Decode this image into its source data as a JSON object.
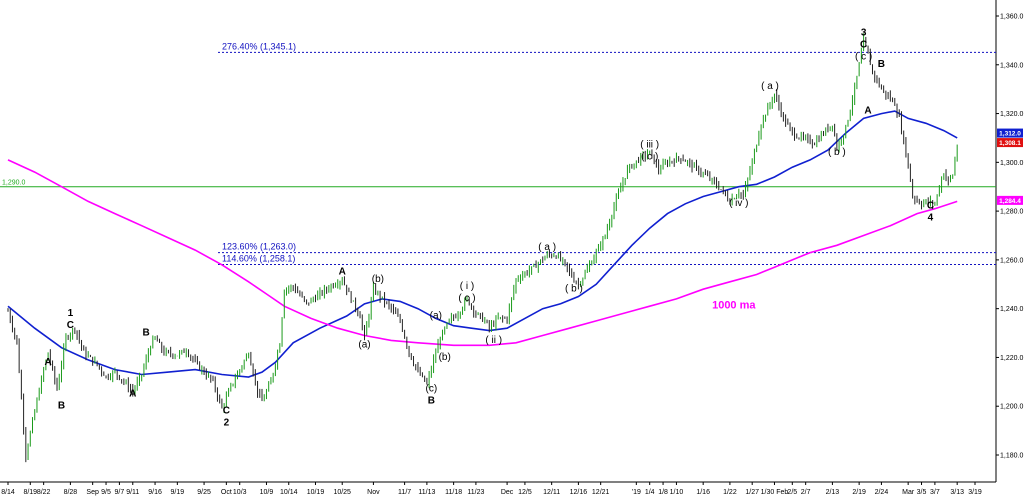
{
  "chart_data": {
    "type": "line",
    "title": "",
    "xlabel": "",
    "ylabel": "",
    "ylim": [
      1175,
      1365
    ],
    "grid": false,
    "y_ticks": [
      {
        "value": 1180,
        "label": "1,180.0"
      },
      {
        "value": 1200,
        "label": "1,200.0"
      },
      {
        "value": 1220,
        "label": "1,220.0"
      },
      {
        "value": 1240,
        "label": "1,240.0"
      },
      {
        "value": 1260,
        "label": "1,260.0"
      },
      {
        "value": 1280,
        "label": "1,280.0"
      },
      {
        "value": 1300,
        "label": "1,300.0"
      },
      {
        "value": 1320,
        "label": "1,320.0"
      },
      {
        "value": 1340,
        "label": "1,340.0"
      },
      {
        "value": 1360,
        "label": "1,360.0"
      }
    ],
    "x_ticks": [
      {
        "t": 0,
        "label": "8/14"
      },
      {
        "t": 5,
        "label": "8/19"
      },
      {
        "t": 8,
        "label": "8/22"
      },
      {
        "t": 14,
        "label": "8/28"
      },
      {
        "t": 19,
        "label": "Sep"
      },
      {
        "t": 22,
        "label": "9/5"
      },
      {
        "t": 25,
        "label": "9/7"
      },
      {
        "t": 28,
        "label": "9/11"
      },
      {
        "t": 33,
        "label": "9/16"
      },
      {
        "t": 38,
        "label": "9/19"
      },
      {
        "t": 44,
        "label": "9/25"
      },
      {
        "t": 49,
        "label": "Oct"
      },
      {
        "t": 52,
        "label": "10/3"
      },
      {
        "t": 58,
        "label": "10/9"
      },
      {
        "t": 63,
        "label": "10/14"
      },
      {
        "t": 69,
        "label": "10/19"
      },
      {
        "t": 75,
        "label": "10/25"
      },
      {
        "t": 82,
        "label": "Nov"
      },
      {
        "t": 89,
        "label": "11/7"
      },
      {
        "t": 94,
        "label": "11/13"
      },
      {
        "t": 100,
        "label": "11/18"
      },
      {
        "t": 105,
        "label": "11/23"
      },
      {
        "t": 112,
        "label": "Dec"
      },
      {
        "t": 116,
        "label": "12/5"
      },
      {
        "t": 122,
        "label": "12/11"
      },
      {
        "t": 128,
        "label": "12/16"
      },
      {
        "t": 133,
        "label": "12/21"
      },
      {
        "t": 141,
        "label": "'19"
      },
      {
        "t": 144,
        "label": "1/4"
      },
      {
        "t": 147,
        "label": "1/8"
      },
      {
        "t": 150,
        "label": "1/10"
      },
      {
        "t": 156,
        "label": "1/16"
      },
      {
        "t": 162,
        "label": "1/22"
      },
      {
        "t": 167,
        "label": "1/27"
      },
      {
        "t": 172,
        "label": "1/30 Feb"
      },
      {
        "t": 176,
        "label": "2/5"
      },
      {
        "t": 179,
        "label": "2/7"
      },
      {
        "t": 185,
        "label": "2/13"
      },
      {
        "t": 191,
        "label": "2/19"
      },
      {
        "t": 196,
        "label": "2/24"
      },
      {
        "t": 202,
        "label": "Mar"
      },
      {
        "t": 205,
        "label": "3/5"
      },
      {
        "t": 208,
        "label": "3/7"
      },
      {
        "t": 213,
        "label": "3/13"
      },
      {
        "t": 217,
        "label": "3/19"
      }
    ],
    "price_path": [
      [
        0,
        1239
      ],
      [
        2,
        1226
      ],
      [
        4,
        1180
      ],
      [
        6,
        1198
      ],
      [
        8,
        1215
      ],
      [
        9,
        1222
      ],
      [
        11,
        1207
      ],
      [
        13,
        1228
      ],
      [
        15,
        1232
      ],
      [
        17,
        1222
      ],
      [
        20,
        1217
      ],
      [
        22,
        1212
      ],
      [
        24,
        1214
      ],
      [
        26,
        1210
      ],
      [
        28,
        1206
      ],
      [
        30,
        1213
      ],
      [
        32,
        1225
      ],
      [
        33,
        1228
      ],
      [
        35,
        1222
      ],
      [
        38,
        1221
      ],
      [
        40,
        1223
      ],
      [
        42,
        1218
      ],
      [
        44,
        1214
      ],
      [
        46,
        1210
      ],
      [
        48,
        1199
      ],
      [
        50,
        1208
      ],
      [
        52,
        1215
      ],
      [
        54,
        1222
      ],
      [
        56,
        1206
      ],
      [
        57,
        1202
      ],
      [
        59,
        1210
      ],
      [
        61,
        1226
      ],
      [
        62,
        1248
      ],
      [
        64,
        1249
      ],
      [
        67,
        1242
      ],
      [
        70,
        1246
      ],
      [
        73,
        1250
      ],
      [
        75,
        1252
      ],
      [
        77,
        1244
      ],
      [
        79,
        1237
      ],
      [
        80,
        1228
      ],
      [
        82,
        1248
      ],
      [
        84,
        1244
      ],
      [
        86,
        1240
      ],
      [
        88,
        1235
      ],
      [
        90,
        1222
      ],
      [
        92,
        1214
      ],
      [
        94,
        1209
      ],
      [
        96,
        1222
      ],
      [
        97,
        1228
      ],
      [
        99,
        1235
      ],
      [
        101,
        1238
      ],
      [
        103,
        1244
      ],
      [
        105,
        1238
      ],
      [
        107,
        1235
      ],
      [
        108,
        1232
      ],
      [
        110,
        1236
      ],
      [
        112,
        1236
      ],
      [
        114,
        1252
      ],
      [
        118,
        1257
      ],
      [
        121,
        1262
      ],
      [
        123,
        1262
      ],
      [
        125,
        1258
      ],
      [
        127,
        1252
      ],
      [
        128,
        1250
      ],
      [
        130,
        1256
      ],
      [
        132,
        1263
      ],
      [
        134,
        1270
      ],
      [
        136,
        1282
      ],
      [
        139,
        1297
      ],
      [
        142,
        1302
      ],
      [
        144,
        1304
      ],
      [
        146,
        1297
      ],
      [
        148,
        1300
      ],
      [
        151,
        1302
      ],
      [
        154,
        1298
      ],
      [
        157,
        1294
      ],
      [
        160,
        1289
      ],
      [
        162,
        1284
      ],
      [
        164,
        1288
      ],
      [
        165,
        1286
      ],
      [
        167,
        1300
      ],
      [
        169,
        1316
      ],
      [
        171,
        1324
      ],
      [
        172,
        1328
      ],
      [
        174,
        1318
      ],
      [
        176,
        1312
      ],
      [
        178,
        1310
      ],
      [
        181,
        1308
      ],
      [
        183,
        1312
      ],
      [
        185,
        1316
      ],
      [
        186,
        1306
      ],
      [
        188,
        1314
      ],
      [
        190,
        1330
      ],
      [
        192,
        1350
      ],
      [
        193,
        1344
      ],
      [
        194,
        1337
      ],
      [
        196,
        1330
      ],
      [
        198,
        1326
      ],
      [
        199,
        1324
      ],
      [
        200,
        1318
      ],
      [
        202,
        1299
      ],
      [
        203,
        1286
      ],
      [
        205,
        1283
      ],
      [
        206,
        1284
      ],
      [
        208,
        1283
      ],
      [
        209,
        1290
      ],
      [
        210,
        1296
      ],
      [
        211,
        1292
      ],
      [
        212,
        1295
      ],
      [
        213,
        1307
      ]
    ],
    "series": [
      {
        "name": "",
        "color": "#1020d0",
        "points": [
          [
            0,
            1241
          ],
          [
            6,
            1232
          ],
          [
            12,
            1224
          ],
          [
            18,
            1219
          ],
          [
            24,
            1215
          ],
          [
            30,
            1213
          ],
          [
            36,
            1214
          ],
          [
            42,
            1215
          ],
          [
            48,
            1213
          ],
          [
            54,
            1212
          ],
          [
            57,
            1214
          ],
          [
            60,
            1218
          ],
          [
            64,
            1226
          ],
          [
            70,
            1232
          ],
          [
            76,
            1237
          ],
          [
            80,
            1242
          ],
          [
            84,
            1244
          ],
          [
            88,
            1243
          ],
          [
            92,
            1240
          ],
          [
            96,
            1236
          ],
          [
            100,
            1233
          ],
          [
            104,
            1232
          ],
          [
            108,
            1231
          ],
          [
            112,
            1232
          ],
          [
            116,
            1236
          ],
          [
            120,
            1240
          ],
          [
            124,
            1242
          ],
          [
            128,
            1245
          ],
          [
            132,
            1250
          ],
          [
            136,
            1258
          ],
          [
            140,
            1266
          ],
          [
            144,
            1273
          ],
          [
            148,
            1279
          ],
          [
            152,
            1283
          ],
          [
            156,
            1286
          ],
          [
            160,
            1288
          ],
          [
            164,
            1290
          ],
          [
            168,
            1291
          ],
          [
            172,
            1294
          ],
          [
            176,
            1298
          ],
          [
            180,
            1301
          ],
          [
            184,
            1305
          ],
          [
            188,
            1312
          ],
          [
            192,
            1318
          ],
          [
            196,
            1320
          ],
          [
            199,
            1321
          ],
          [
            202,
            1318
          ],
          [
            206,
            1316
          ],
          [
            210,
            1313
          ],
          [
            213,
            1310
          ]
        ]
      },
      {
        "name": "1000 ma",
        "color": "#ff00ff",
        "points": [
          [
            0,
            1301
          ],
          [
            6,
            1296
          ],
          [
            12,
            1290
          ],
          [
            18,
            1284
          ],
          [
            24,
            1279
          ],
          [
            30,
            1274
          ],
          [
            36,
            1269
          ],
          [
            42,
            1264
          ],
          [
            48,
            1258
          ],
          [
            54,
            1251
          ],
          [
            58,
            1246
          ],
          [
            62,
            1241
          ],
          [
            68,
            1236
          ],
          [
            74,
            1232
          ],
          [
            80,
            1229
          ],
          [
            86,
            1227
          ],
          [
            92,
            1226
          ],
          [
            100,
            1225
          ],
          [
            108,
            1225
          ],
          [
            114,
            1226
          ],
          [
            120,
            1229
          ],
          [
            126,
            1232
          ],
          [
            132,
            1235
          ],
          [
            138,
            1238
          ],
          [
            144,
            1241
          ],
          [
            150,
            1244
          ],
          [
            156,
            1248
          ],
          [
            162,
            1251
          ],
          [
            168,
            1254
          ],
          [
            172,
            1257
          ],
          [
            176,
            1260
          ],
          [
            180,
            1263
          ],
          [
            186,
            1266
          ],
          [
            192,
            1270
          ],
          [
            198,
            1274
          ],
          [
            204,
            1279
          ],
          [
            208,
            1281
          ],
          [
            213,
            1284
          ]
        ]
      }
    ],
    "reference_lines": [
      {
        "value": 1345.1,
        "label": "276.40% (1,345.1)",
        "color": "#1010c0",
        "style": "dotted"
      },
      {
        "value": 1263.0,
        "label": "123.60% (1,263.0)",
        "color": "#1010c0",
        "style": "dotted"
      },
      {
        "value": 1258.1,
        "label": "114.60% (1,258.1)",
        "color": "#1010c0",
        "style": "dotted"
      },
      {
        "value": 1290.0,
        "label": "1,290.0",
        "color": "#22aa22",
        "style": "solid"
      }
    ],
    "price_tags": [
      {
        "value": 1312.0,
        "label": "1,312.0",
        "color": "#1020d0"
      },
      {
        "value": 1308.1,
        "label": "1,308.1",
        "color": "#e01010"
      },
      {
        "value": 1284.4,
        "label": "1,284.4",
        "color": "#ff00ff"
      }
    ],
    "annotations": [
      {
        "t": 14,
        "v": 1237,
        "lines": [
          "1",
          "C"
        ]
      },
      {
        "t": 9,
        "v": 1217,
        "lines": [
          "A"
        ]
      },
      {
        "t": 12,
        "v": 1199,
        "lines": [
          "B"
        ]
      },
      {
        "t": 31,
        "v": 1229,
        "lines": [
          "B"
        ]
      },
      {
        "t": 28,
        "v": 1204,
        "lines": [
          "A"
        ]
      },
      {
        "t": 49,
        "v": 1197,
        "lines": [
          "C",
          "2"
        ]
      },
      {
        "t": 75,
        "v": 1254,
        "lines": [
          "A"
        ]
      },
      {
        "t": 83,
        "v": 1251,
        "lines": [
          "(b)"
        ]
      },
      {
        "t": 80,
        "v": 1224,
        "lines": [
          "(a)"
        ]
      },
      {
        "t": 95,
        "v": 1206,
        "lines": [
          "(c)",
          "B"
        ]
      },
      {
        "t": 96,
        "v": 1236,
        "lines": [
          "(a)"
        ]
      },
      {
        "t": 98,
        "v": 1219,
        "lines": [
          "(b)"
        ]
      },
      {
        "t": 103,
        "v": 1248,
        "lines": [
          "( i )",
          "( c )"
        ]
      },
      {
        "t": 109,
        "v": 1226,
        "lines": [
          "( ii )"
        ]
      },
      {
        "t": 121,
        "v": 1264,
        "lines": [
          "( a )"
        ]
      },
      {
        "t": 127,
        "v": 1247,
        "lines": [
          "( b )"
        ]
      },
      {
        "t": 144,
        "v": 1306,
        "lines": [
          "( iii )",
          "( c )"
        ]
      },
      {
        "t": 164,
        "v": 1282,
        "lines": [
          "( iv )"
        ]
      },
      {
        "t": 171,
        "v": 1330,
        "lines": [
          "( a )"
        ]
      },
      {
        "t": 186,
        "v": 1303,
        "lines": [
          "( b )"
        ]
      },
      {
        "t": 192,
        "v": 1352,
        "lines": [
          "3",
          "C",
          "( c )"
        ]
      },
      {
        "t": 196,
        "v": 1339,
        "lines": [
          "B"
        ]
      },
      {
        "t": 193,
        "v": 1320,
        "lines": [
          "A"
        ]
      },
      {
        "t": 207,
        "v": 1281,
        "lines": [
          "C",
          "4"
        ]
      }
    ],
    "text_labels": [
      {
        "t": 158,
        "v": 1240,
        "text": "1000 ma",
        "color": "#ff00ff"
      }
    ]
  }
}
